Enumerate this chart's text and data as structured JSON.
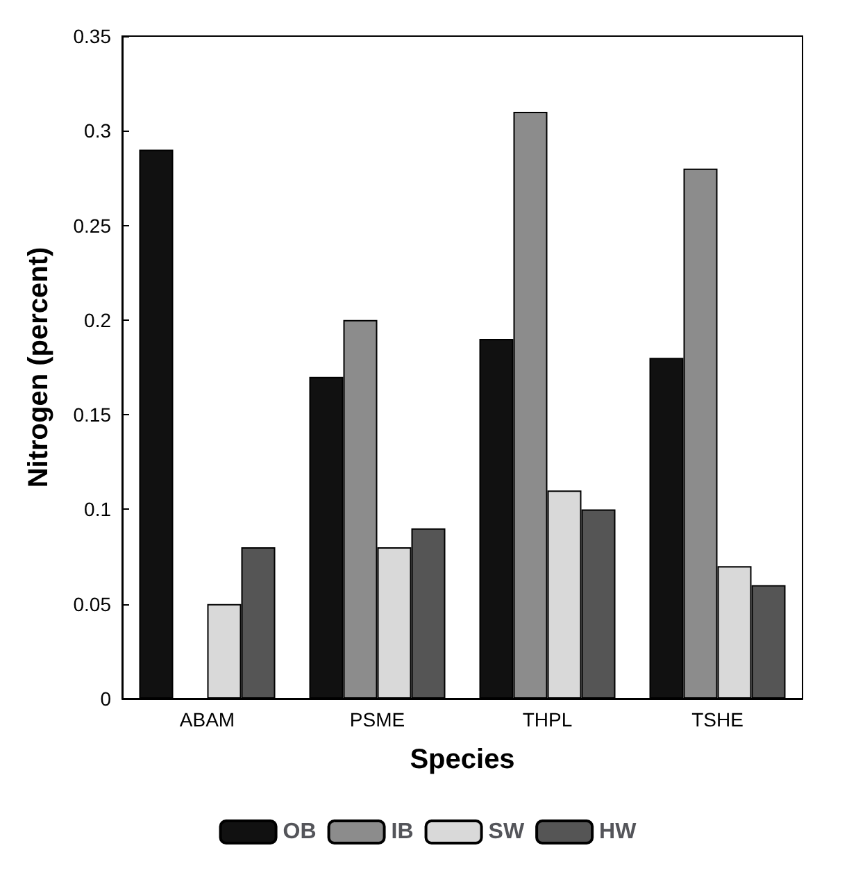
{
  "chart_data": {
    "type": "bar",
    "xlabel": "Species",
    "ylabel": "Nitrogen (percent)",
    "categories": [
      "ABAM",
      "PSME",
      "THPL",
      "TSHE"
    ],
    "series": [
      {
        "name": "OB",
        "color": "#111111",
        "values": [
          0.29,
          0.17,
          0.19,
          0.18
        ]
      },
      {
        "name": "IB",
        "color": "#8c8c8c",
        "values": [
          null,
          0.2,
          0.31,
          0.28
        ]
      },
      {
        "name": "SW",
        "color": "#d9d9d9",
        "values": [
          0.05,
          0.08,
          0.11,
          0.07
        ]
      },
      {
        "name": "HW",
        "color": "#555555",
        "values": [
          0.08,
          0.09,
          0.1,
          0.06
        ]
      }
    ],
    "ylim": [
      0,
      0.35
    ],
    "yticks": [
      0,
      0.05,
      0.1,
      0.15,
      0.2,
      0.25,
      0.3,
      0.35
    ],
    "grid": false,
    "legend": "bottom"
  }
}
